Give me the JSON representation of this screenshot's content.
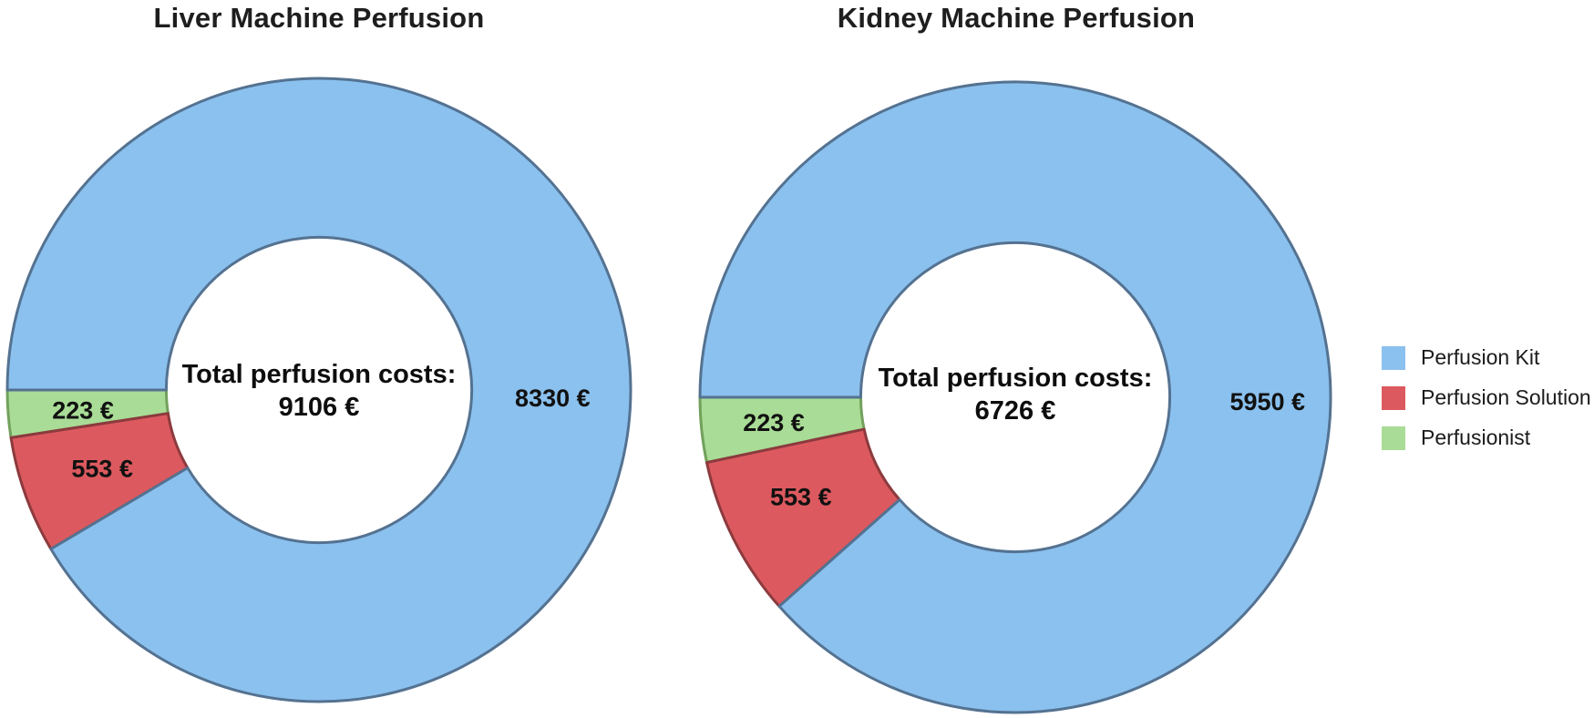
{
  "page": {
    "background_color": "#ffffff",
    "text_color": "#1e1e1e"
  },
  "legend": {
    "position": "right",
    "items": [
      {
        "label": "Perfusion Kit",
        "color": "#8BC1EE"
      },
      {
        "label": "Perfusion Solution",
        "color": "#DC5A5F"
      },
      {
        "label": "Perfusionist",
        "color": "#A9DC96"
      }
    ]
  },
  "chart_data": [
    {
      "type": "pie",
      "subtype": "donut",
      "title": "Liver Machine Perfusion",
      "center_label_line1": "Total perfusion costs:",
      "center_label_line2": "9106 €",
      "total_value": 9106,
      "currency": "EUR",
      "start_angle_deg": 180,
      "direction": "counterclockwise",
      "hole_ratio": 0.49,
      "slices": [
        {
          "name": "Perfusionist",
          "value": 223,
          "label": "223 €",
          "color": "#A9DC96",
          "border": "#72A15C",
          "label_angle_deg": 185,
          "label_radius_ratio": 0.76
        },
        {
          "name": "Perfusion Solution",
          "value": 553,
          "label": "553 €",
          "color": "#DC5A5F",
          "border": "#8C3A3E",
          "label_angle_deg": 200,
          "label_radius_ratio": 0.74
        },
        {
          "name": "Perfusion Kit",
          "value": 8330,
          "label": "8330 €",
          "color": "#8BC1EE",
          "border": "#547291",
          "label_angle_deg": -2,
          "label_radius_ratio": 0.75
        }
      ]
    },
    {
      "type": "pie",
      "subtype": "donut",
      "title": "Kidney Machine Perfusion",
      "center_label_line1": "Total perfusion costs:",
      "center_label_line2": "6726 €",
      "total_value": 6726,
      "currency": "EUR",
      "start_angle_deg": 180,
      "direction": "counterclockwise",
      "hole_ratio": 0.49,
      "slices": [
        {
          "name": "Perfusionist",
          "value": 223,
          "label": "223 €",
          "color": "#A9DC96",
          "border": "#72A15C",
          "label_angle_deg": 186,
          "label_radius_ratio": 0.77
        },
        {
          "name": "Perfusion Solution",
          "value": 553,
          "label": "553 €",
          "color": "#DC5A5F",
          "border": "#8C3A3E",
          "label_angle_deg": 205,
          "label_radius_ratio": 0.75
        },
        {
          "name": "Perfusion Kit",
          "value": 5950,
          "label": "5950 €",
          "color": "#8BC1EE",
          "border": "#547291",
          "label_angle_deg": -1,
          "label_radius_ratio": 0.8
        }
      ]
    }
  ]
}
